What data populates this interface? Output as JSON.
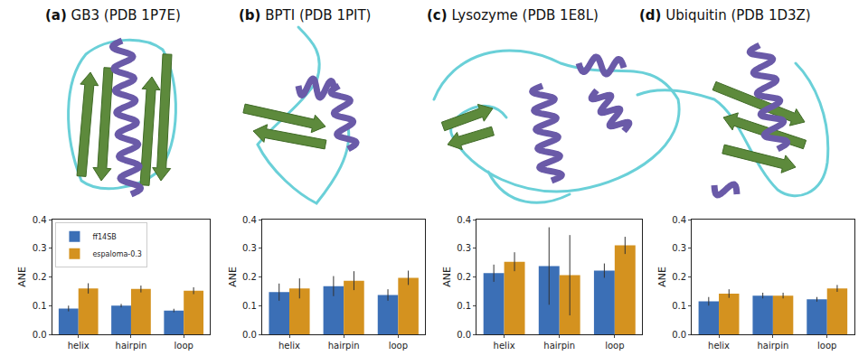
{
  "chart_data": [
    {
      "type": "bar",
      "title": "(a) GB3 (PDB 1P7E)",
      "y_label": "ANE",
      "categories": [
        "helix",
        "hairpin",
        "loop"
      ],
      "series": [
        {
          "name": "ff14SB",
          "color": "#3b6fb6",
          "values": [
            0.09,
            0.1,
            0.083
          ],
          "errors": [
            0.01,
            0.006,
            0.006
          ]
        },
        {
          "name": "espaloma-0.3",
          "color": "#d4921f",
          "values": [
            0.16,
            0.158,
            0.152
          ],
          "errors": [
            0.018,
            0.012,
            0.012
          ]
        }
      ],
      "ylim": [
        0,
        0.4
      ],
      "yticks": [
        {
          "value": 0,
          "label": "0.0"
        },
        {
          "value": 0.1,
          "label": "0.1"
        },
        {
          "value": 0.2,
          "label": "0.2"
        },
        {
          "value": 0.3,
          "label": "0.3"
        },
        {
          "value": 0.4,
          "label": "0.4"
        }
      ],
      "legend": "upper left"
    },
    {
      "type": "bar",
      "title": "(b) BPTI (PDB 1PIT)",
      "y_label": "ANE",
      "categories": [
        "helix",
        "hairpin",
        "loop"
      ],
      "series": [
        {
          "name": "ff14SB",
          "color": "#3b6fb6",
          "values": [
            0.147,
            0.168,
            0.137
          ],
          "errors": [
            0.03,
            0.035,
            0.02
          ]
        },
        {
          "name": "espaloma-0.3",
          "color": "#d4921f",
          "values": [
            0.16,
            0.187,
            0.197
          ],
          "errors": [
            0.035,
            0.033,
            0.025
          ]
        }
      ],
      "ylim": [
        0,
        0.4
      ],
      "yticks": [
        {
          "value": 0,
          "label": "0.0"
        },
        {
          "value": 0.1,
          "label": "0.1"
        },
        {
          "value": 0.2,
          "label": "0.2"
        },
        {
          "value": 0.3,
          "label": "0.3"
        },
        {
          "value": 0.4,
          "label": "0.4"
        }
      ]
    },
    {
      "type": "bar",
      "title": "(c) Lysozyme (PDB 1E8L)",
      "y_label": "ANE",
      "categories": [
        "helix",
        "hairpin",
        "loop"
      ],
      "series": [
        {
          "name": "ff14SB",
          "color": "#3b6fb6",
          "values": [
            0.213,
            0.238,
            0.222
          ],
          "errors": [
            0.03,
            0.135,
            0.025
          ]
        },
        {
          "name": "espaloma-0.3",
          "color": "#d4921f",
          "values": [
            0.253,
            0.206,
            0.31
          ],
          "errors": [
            0.033,
            0.14,
            0.03
          ]
        }
      ],
      "ylim": [
        0,
        0.4
      ],
      "yticks": [
        {
          "value": 0,
          "label": "0.0"
        },
        {
          "value": 0.1,
          "label": "0.1"
        },
        {
          "value": 0.2,
          "label": "0.2"
        },
        {
          "value": 0.3,
          "label": "0.3"
        },
        {
          "value": 0.4,
          "label": "0.4"
        }
      ]
    },
    {
      "type": "bar",
      "title": "(d) Ubiquitin (PDB 1D3Z)",
      "y_label": "ANE",
      "categories": [
        "helix",
        "hairpin",
        "loop"
      ],
      "series": [
        {
          "name": "ff14SB",
          "color": "#3b6fb6",
          "values": [
            0.115,
            0.135,
            0.122
          ],
          "errors": [
            0.015,
            0.01,
            0.008
          ]
        },
        {
          "name": "espaloma-0.3",
          "color": "#d4921f",
          "values": [
            0.142,
            0.135,
            0.16
          ],
          "errors": [
            0.015,
            0.01,
            0.012
          ]
        }
      ],
      "ylim": [
        0,
        0.4
      ],
      "yticks": [
        {
          "value": 0,
          "label": "0.0"
        },
        {
          "value": 0.1,
          "label": "0.1"
        },
        {
          "value": 0.2,
          "label": "0.2"
        },
        {
          "value": 0.3,
          "label": "0.3"
        },
        {
          "value": 0.4,
          "label": "0.4"
        }
      ]
    }
  ]
}
